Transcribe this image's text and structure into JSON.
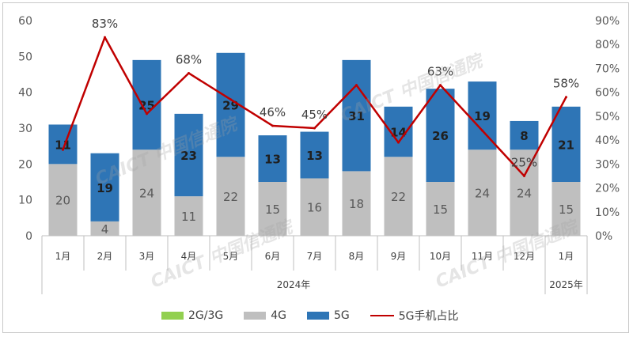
{
  "chart_data": {
    "type": "bar",
    "categories": [
      "1月",
      "2月",
      "3月",
      "4月",
      "5月",
      "6月",
      "7月",
      "8月",
      "9月",
      "10月",
      "11月",
      "12月",
      "1月"
    ],
    "year_groups": [
      {
        "label": "2024年",
        "start": 0,
        "end": 11
      },
      {
        "label": "2025年",
        "start": 12,
        "end": 12
      }
    ],
    "series": [
      {
        "name": "2G/3G",
        "kind": "bar",
        "color": "#92d050",
        "values": [
          0,
          0,
          0,
          0,
          0,
          0,
          0,
          0,
          0,
          0,
          0,
          0,
          0
        ]
      },
      {
        "name": "4G",
        "kind": "bar",
        "color": "#bfbfbf",
        "values": [
          20,
          4,
          24,
          11,
          22,
          15,
          16,
          18,
          22,
          15,
          24,
          24,
          15
        ]
      },
      {
        "name": "5G",
        "kind": "bar",
        "color": "#2e75b6",
        "values": [
          11,
          19,
          25,
          23,
          29,
          13,
          13,
          31,
          14,
          26,
          19,
          8,
          21
        ]
      },
      {
        "name": "5G手机占比",
        "kind": "line",
        "color": "#c00000",
        "axis": "right",
        "values": [
          36,
          83,
          51,
          68,
          57,
          46,
          45,
          63,
          39,
          63,
          44,
          25,
          58
        ]
      }
    ],
    "line_labels": [
      {
        "index": 1,
        "text": "83%"
      },
      {
        "index": 3,
        "text": "68%"
      },
      {
        "index": 5,
        "text": "46%"
      },
      {
        "index": 6,
        "text": "45%"
      },
      {
        "index": 9,
        "text": "63%"
      },
      {
        "index": 11,
        "text": "25%"
      },
      {
        "index": 12,
        "text": "58%"
      }
    ],
    "ylim": [
      0,
      60
    ],
    "y_ticks": [
      "0",
      "10",
      "20",
      "30",
      "40",
      "50",
      "60"
    ],
    "y2lim": [
      0,
      90
    ],
    "y2_ticks": [
      "0%",
      "10%",
      "20%",
      "30%",
      "40%",
      "50%",
      "60%",
      "70%",
      "80%",
      "90%"
    ],
    "grid": false,
    "legend_position": "bottom"
  },
  "watermark": "CAICT 中国信通院"
}
